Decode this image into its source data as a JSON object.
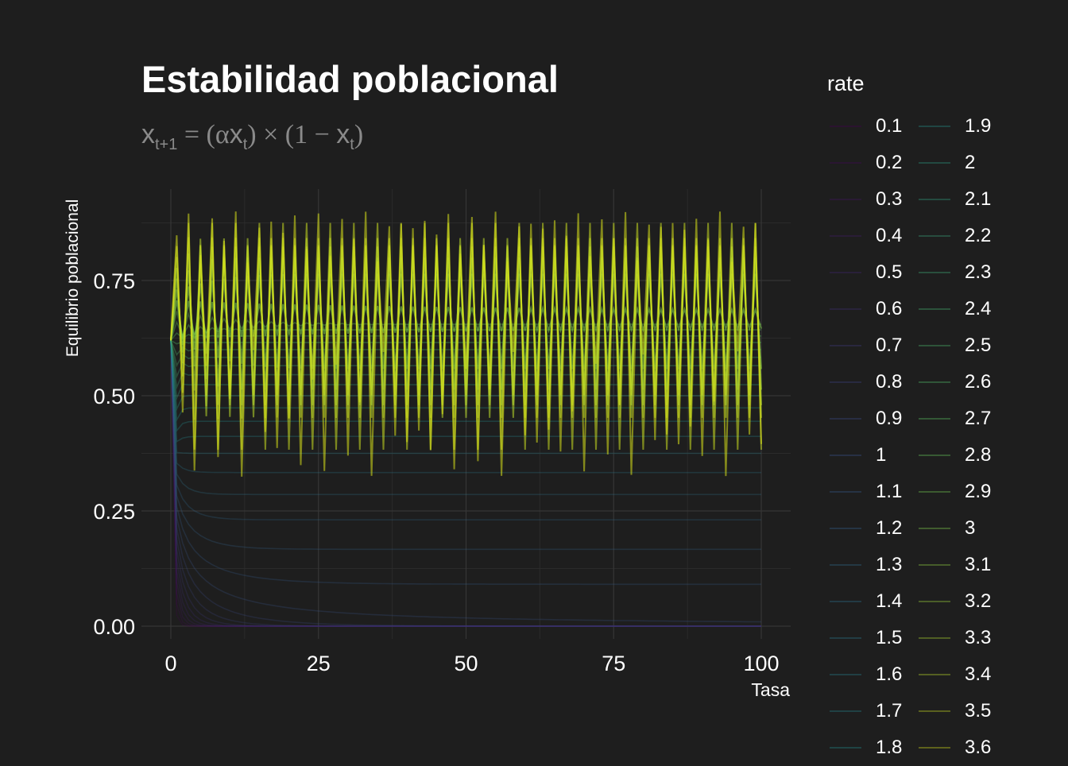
{
  "chart_data": {
    "type": "line",
    "title": "Estabilidad poblacional",
    "subtitle": {
      "lhs_var": "x",
      "lhs_sub": "t+1",
      "eq": "=",
      "open1": "(",
      "alpha": "α",
      "var1": "x",
      "sub1": "t",
      "close1": ")",
      "times": "×",
      "open2": "(",
      "one_minus": "1 −",
      "var2": "x",
      "sub2": "t",
      "close2": ")"
    },
    "xlabel": "Tasa",
    "ylabel": "Equilibrio poblacional",
    "xlim": [
      0,
      100
    ],
    "ylim": [
      0,
      0.9
    ],
    "x_ticks": [
      "0",
      "25",
      "50",
      "75",
      "100"
    ],
    "y_ticks": [
      "0.00",
      "0.25",
      "0.50",
      "0.75"
    ],
    "grid": true,
    "x0": 0.62,
    "legend": {
      "title": "rate",
      "placement": "right",
      "entries": [
        "0.1",
        "0.2",
        "0.3",
        "0.4",
        "0.5",
        "0.6",
        "0.7",
        "0.8",
        "0.9",
        "1",
        "1.1",
        "1.2",
        "1.3",
        "1.4",
        "1.5",
        "1.6",
        "1.7",
        "1.8",
        "1.9",
        "2",
        "2.1",
        "2.2",
        "2.3",
        "2.4",
        "2.5",
        "2.6",
        "2.7",
        "2.8",
        "2.9",
        "3",
        "3.1",
        "3.2",
        "3.3",
        "3.4",
        "3.5",
        "3.6"
      ]
    },
    "series": [
      {
        "name": "0.1",
        "rate": 0.1
      },
      {
        "name": "0.2",
        "rate": 0.2
      },
      {
        "name": "0.3",
        "rate": 0.3
      },
      {
        "name": "0.4",
        "rate": 0.4
      },
      {
        "name": "0.5",
        "rate": 0.5
      },
      {
        "name": "0.6",
        "rate": 0.6
      },
      {
        "name": "0.7",
        "rate": 0.7
      },
      {
        "name": "0.8",
        "rate": 0.8
      },
      {
        "name": "0.9",
        "rate": 0.9
      },
      {
        "name": "1",
        "rate": 1.0
      },
      {
        "name": "1.1",
        "rate": 1.1
      },
      {
        "name": "1.2",
        "rate": 1.2
      },
      {
        "name": "1.3",
        "rate": 1.3
      },
      {
        "name": "1.4",
        "rate": 1.4
      },
      {
        "name": "1.5",
        "rate": 1.5
      },
      {
        "name": "1.6",
        "rate": 1.6
      },
      {
        "name": "1.7",
        "rate": 1.7
      },
      {
        "name": "1.8",
        "rate": 1.8
      },
      {
        "name": "1.9",
        "rate": 1.9
      },
      {
        "name": "2",
        "rate": 2.0
      },
      {
        "name": "2.1",
        "rate": 2.1
      },
      {
        "name": "2.2",
        "rate": 2.2
      },
      {
        "name": "2.3",
        "rate": 2.3
      },
      {
        "name": "2.4",
        "rate": 2.4
      },
      {
        "name": "2.5",
        "rate": 2.5
      },
      {
        "name": "2.6",
        "rate": 2.6
      },
      {
        "name": "2.7",
        "rate": 2.7
      },
      {
        "name": "2.8",
        "rate": 2.8
      },
      {
        "name": "2.9",
        "rate": 2.9
      },
      {
        "name": "3",
        "rate": 3.0
      },
      {
        "name": "3.1",
        "rate": 3.1
      },
      {
        "name": "3.2",
        "rate": 3.2
      },
      {
        "name": "3.3",
        "rate": 3.3
      },
      {
        "name": "3.4",
        "rate": 3.4
      },
      {
        "name": "3.5",
        "rate": 3.5
      },
      {
        "name": "3.6",
        "rate": 3.6
      }
    ]
  },
  "colors": {
    "background": "#1e1e1e",
    "grid": "#333333",
    "text": "#ffffff",
    "subtitle": "#8a8a8a",
    "palette_low": "#440154",
    "palette_mid": "#21908c",
    "palette_high": "#d8e219"
  }
}
